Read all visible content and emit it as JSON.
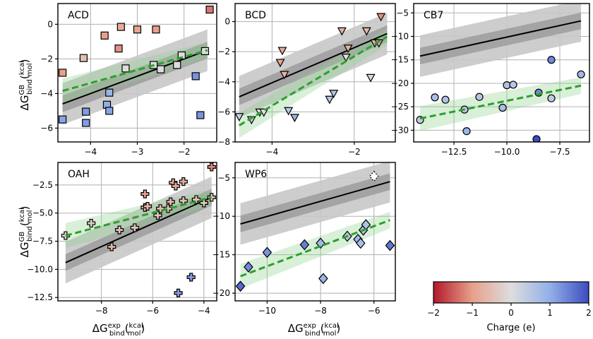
{
  "chart_data": {
    "type": "scatter",
    "figure": {
      "ylabel_top": "ΔG_bind^GB (kcal/mol)",
      "ylabel_bottom": "ΔG_bind^GB (kcal/mol)",
      "xlabel_left": "ΔG_bind^exp (kcal/mol)",
      "xlabel_mid": "ΔG_bind^exp (kcal/mol)",
      "math": {
        "delta_g": "ΔG",
        "sup_gb": "GB",
        "sup_exp": "exp",
        "sub_bind": "bind",
        "unit_num": "kcal",
        "unit_den": "mol"
      }
    },
    "colorbar": {
      "label": "Charge (e)",
      "min": -2,
      "max": 2,
      "ticks": [
        -2,
        -1,
        0,
        1,
        2
      ],
      "tick_labels": [
        "−2",
        "−1",
        "0",
        "1",
        "2"
      ],
      "cmap": [
        "#b2182b",
        "#e7a08a",
        "#dddddd",
        "#92b0e8",
        "#3b4cc0"
      ]
    },
    "panels": [
      {
        "name": "ACD",
        "marker": "square",
        "xlim": [
          -4.7,
          -1.3
        ],
        "ylim": [
          -6.8,
          1.2
        ],
        "xticks": [
          -4,
          -3,
          -2
        ],
        "xtick_labels": [
          "−4",
          "−3",
          "−2"
        ],
        "yticks": [
          -6,
          -4,
          -2,
          0
        ],
        "ytick_labels": [
          "−6",
          "−4",
          "−2",
          "0"
        ],
        "black_line": [
          [
            -4.6,
            -4.6
          ],
          [
            -1.5,
            -1.5
          ]
        ],
        "green_line": [
          [
            -4.6,
            -3.85
          ],
          [
            -1.5,
            -1.5
          ]
        ],
        "points": [
          {
            "x": -4.6,
            "y": -2.8,
            "c": -1.0
          },
          {
            "x": -4.6,
            "y": -5.5,
            "c": 1.1
          },
          {
            "x": -4.15,
            "y": -1.95,
            "c": -0.5
          },
          {
            "x": -4.1,
            "y": -5.05,
            "c": 1.2
          },
          {
            "x": -4.1,
            "y": -5.7,
            "c": 1.2
          },
          {
            "x": -3.7,
            "y": -0.65,
            "c": -1.0
          },
          {
            "x": -3.6,
            "y": -3.95,
            "c": 0.9
          },
          {
            "x": -3.65,
            "y": -4.65,
            "c": 1.0
          },
          {
            "x": -3.6,
            "y": -5.0,
            "c": 1.1
          },
          {
            "x": -3.4,
            "y": -1.4,
            "c": -1.1
          },
          {
            "x": -3.35,
            "y": -0.15,
            "c": -0.8
          },
          {
            "x": -3.25,
            "y": -2.55,
            "c": 0.0
          },
          {
            "x": -3.0,
            "y": -0.3,
            "c": -0.9
          },
          {
            "x": -2.65,
            "y": -2.35,
            "c": 0.0
          },
          {
            "x": -2.6,
            "y": -0.3,
            "c": -1.0
          },
          {
            "x": -2.5,
            "y": -2.6,
            "c": 0.0
          },
          {
            "x": -2.15,
            "y": -2.35,
            "c": 0.0
          },
          {
            "x": -2.05,
            "y": -1.8,
            "c": 0.0
          },
          {
            "x": -1.75,
            "y": -3.0,
            "c": 1.3
          },
          {
            "x": -1.65,
            "y": -5.25,
            "c": 1.3
          },
          {
            "x": -1.55,
            "y": -1.55,
            "c": 0.0
          },
          {
            "x": -1.45,
            "y": 0.85,
            "c": -1.3
          }
        ]
      },
      {
        "name": "BCD",
        "marker": "triangle",
        "xlim": [
          -4.9,
          -1.0
        ],
        "ylim": [
          -8,
          1.2
        ],
        "xticks": [
          -4,
          -2
        ],
        "xtick_labels": [
          "−4",
          "−2"
        ],
        "yticks": [
          -8,
          -6,
          -4,
          -2,
          0
        ],
        "ytick_labels": [
          "−8",
          "−6",
          "−4",
          "−2",
          "0"
        ],
        "black_line": [
          [
            -4.8,
            -5.0
          ],
          [
            -1.2,
            -0.8
          ]
        ],
        "green_line": [
          [
            -4.8,
            -6.9
          ],
          [
            -1.2,
            -1.0
          ]
        ],
        "points": [
          {
            "x": -4.8,
            "y": -6.3,
            "c": 0.3
          },
          {
            "x": -4.5,
            "y": -6.5,
            "c": 0.4
          },
          {
            "x": -4.3,
            "y": -6.0,
            "c": 0.0
          },
          {
            "x": -4.2,
            "y": -6.0,
            "c": 0.0
          },
          {
            "x": -3.8,
            "y": -2.7,
            "c": -0.9
          },
          {
            "x": -3.75,
            "y": -1.9,
            "c": -0.8
          },
          {
            "x": -3.7,
            "y": -3.5,
            "c": -0.7
          },
          {
            "x": -3.6,
            "y": -5.9,
            "c": 0.5
          },
          {
            "x": -3.45,
            "y": -6.35,
            "c": 0.9
          },
          {
            "x": -2.6,
            "y": -5.15,
            "c": 0.5
          },
          {
            "x": -2.5,
            "y": -4.75,
            "c": 0.6
          },
          {
            "x": -2.3,
            "y": -0.6,
            "c": -0.7
          },
          {
            "x": -2.2,
            "y": -2.35,
            "c": 0.0
          },
          {
            "x": -2.15,
            "y": -1.75,
            "c": -0.7
          },
          {
            "x": -1.7,
            "y": -0.6,
            "c": -0.6
          },
          {
            "x": -1.6,
            "y": -3.7,
            "c": 0.1
          },
          {
            "x": -1.5,
            "y": -1.4,
            "c": -0.7
          },
          {
            "x": -1.4,
            "y": -1.4,
            "c": -0.8
          },
          {
            "x": -1.35,
            "y": 0.35,
            "c": -1.1
          }
        ]
      },
      {
        "name": "CB7",
        "marker": "circle",
        "xlim": [
          -14.4,
          -6.1
        ],
        "ylim": [
          -32.5,
          -3.0
        ],
        "xticks": [
          -12.5,
          -10.0,
          -7.5
        ],
        "xtick_labels": [
          "−12.5",
          "−10.0",
          "−7.5"
        ],
        "yticks": [
          -30,
          -25,
          -20,
          -15,
          -10,
          -5
        ],
        "ytick_labels": [
          "−30",
          "−25",
          "−20",
          "−15",
          "−10",
          "−5"
        ],
        "black_line": [
          [
            -14.1,
            -14.2
          ],
          [
            -6.5,
            -6.7
          ]
        ],
        "green_line": [
          [
            -14.1,
            -27.5
          ],
          [
            -6.5,
            -20.5
          ]
        ],
        "points": [
          {
            "x": -14.1,
            "y": -27.8,
            "c": 0.4
          },
          {
            "x": -13.4,
            "y": -23.0,
            "c": 0.7
          },
          {
            "x": -12.9,
            "y": -23.5,
            "c": 0.6
          },
          {
            "x": -12.0,
            "y": -25.6,
            "c": 0.5
          },
          {
            "x": -11.9,
            "y": -30.2,
            "c": 0.9
          },
          {
            "x": -11.3,
            "y": -22.9,
            "c": 0.5
          },
          {
            "x": -10.2,
            "y": -25.2,
            "c": 0.7
          },
          {
            "x": -10.0,
            "y": -20.4,
            "c": 0.6
          },
          {
            "x": -9.7,
            "y": -20.3,
            "c": 0.5
          },
          {
            "x": -8.6,
            "y": -31.9,
            "c": 2.0
          },
          {
            "x": -8.5,
            "y": -22.0,
            "c": 1.4
          },
          {
            "x": -7.9,
            "y": -15.0,
            "c": 1.4
          },
          {
            "x": -7.9,
            "y": -23.2,
            "c": 0.4
          },
          {
            "x": -6.5,
            "y": -18.1,
            "c": 0.8
          }
        ]
      },
      {
        "name": "OAH",
        "marker": "plus",
        "xlim": [
          -9.7,
          -3.5
        ],
        "ylim": [
          -12.8,
          -0.5
        ],
        "xticks": [
          -8,
          -6,
          -4
        ],
        "xtick_labels": [
          "−8",
          "−6",
          "−4"
        ],
        "yticks": [
          -12.5,
          -10.0,
          -7.5,
          -5.0,
          -2.5
        ],
        "ytick_labels": [
          "−12.5",
          "−10.0",
          "−7.5",
          "−5.0",
          "−2.5"
        ],
        "black_line": [
          [
            -9.4,
            -9.4
          ],
          [
            -3.7,
            -3.6
          ]
        ],
        "green_line": [
          [
            -9.4,
            -7.0
          ],
          [
            -3.7,
            -3.6
          ]
        ],
        "points": [
          {
            "x": -9.4,
            "y": -7.0,
            "c": -0.2
          },
          {
            "x": -8.4,
            "y": -5.9,
            "c": -0.3
          },
          {
            "x": -7.6,
            "y": -8.0,
            "c": -0.7
          },
          {
            "x": -7.3,
            "y": -6.5,
            "c": -0.5
          },
          {
            "x": -6.7,
            "y": -6.3,
            "c": -0.4
          },
          {
            "x": -6.3,
            "y": -3.3,
            "c": -1.0
          },
          {
            "x": -6.3,
            "y": -4.5,
            "c": -0.7
          },
          {
            "x": -6.2,
            "y": -4.4,
            "c": -0.6
          },
          {
            "x": -5.8,
            "y": -5.2,
            "c": -0.4
          },
          {
            "x": -5.7,
            "y": -4.6,
            "c": -0.6
          },
          {
            "x": -5.4,
            "y": -4.6,
            "c": -0.5
          },
          {
            "x": -5.3,
            "y": -4.0,
            "c": -0.6
          },
          {
            "x": -5.2,
            "y": -2.3,
            "c": -0.9
          },
          {
            "x": -5.1,
            "y": -2.6,
            "c": -0.8
          },
          {
            "x": -5.0,
            "y": -12.1,
            "c": 1.2
          },
          {
            "x": -4.8,
            "y": -3.9,
            "c": -0.5
          },
          {
            "x": -4.8,
            "y": -2.2,
            "c": -0.8
          },
          {
            "x": -4.5,
            "y": -10.7,
            "c": 1.2
          },
          {
            "x": -4.3,
            "y": -3.8,
            "c": -0.4
          },
          {
            "x": -4.0,
            "y": -4.1,
            "c": -0.4
          },
          {
            "x": -3.7,
            "y": -3.6,
            "c": -0.4
          },
          {
            "x": -3.7,
            "y": -0.9,
            "c": -1.2
          }
        ]
      },
      {
        "name": "WP6",
        "marker": "diamond",
        "xlim": [
          -11.2,
          -5.2
        ],
        "ylim": [
          -21.0,
          -3.0
        ],
        "xticks": [
          -10,
          -8,
          -6
        ],
        "xtick_labels": [
          "−10",
          "−8",
          "−6"
        ],
        "yticks": [
          -20,
          -15,
          -10,
          -5
        ],
        "ytick_labels": [
          "−20",
          "−15",
          "−10",
          "−5"
        ],
        "black_line": [
          [
            -11.0,
            -11.0
          ],
          [
            -5.4,
            -5.5
          ]
        ],
        "green_line": [
          [
            -11.0,
            -17.8
          ],
          [
            -5.4,
            -10.5
          ]
        ],
        "points": [
          {
            "x": -11.0,
            "y": -19.1,
            "c": 1.7
          },
          {
            "x": -10.7,
            "y": -16.6,
            "c": 1.4
          },
          {
            "x": -10.0,
            "y": -14.7,
            "c": 1.3
          },
          {
            "x": -8.6,
            "y": -13.7,
            "c": 1.5
          },
          {
            "x": -8.0,
            "y": -13.5,
            "c": 0.8
          },
          {
            "x": -7.9,
            "y": -18.1,
            "c": 0.9
          },
          {
            "x": -7.0,
            "y": -12.6,
            "c": 0.5
          },
          {
            "x": -6.6,
            "y": -13.0,
            "c": 0.8
          },
          {
            "x": -6.5,
            "y": -13.5,
            "c": 0.7
          },
          {
            "x": -6.4,
            "y": -11.8,
            "c": 0.6
          },
          {
            "x": -6.3,
            "y": -11.1,
            "c": 0.6
          },
          {
            "x": -6.0,
            "y": -4.8,
            "c": 0.0
          },
          {
            "x": -5.4,
            "y": -13.8,
            "c": 1.6
          }
        ]
      }
    ]
  }
}
